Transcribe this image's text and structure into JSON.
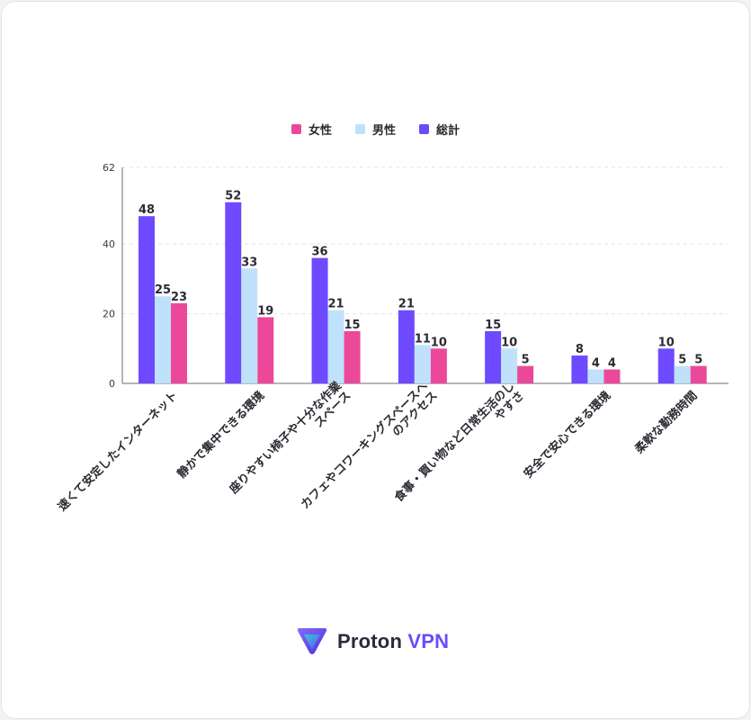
{
  "legend": [
    {
      "name": "女性",
      "color": "#ec4899"
    },
    {
      "name": "男性",
      "color": "#bfe1fb"
    },
    {
      "name": "総計",
      "color": "#6d4aff"
    }
  ],
  "chart_data": {
    "type": "bar",
    "categories": [
      "速くて安定したインターネット",
      "静かで集中できる環境",
      "座りやすい椅子や十分な作業スペース",
      "カフェやコワーキングスペースへのアクセス",
      "食事・買い物など日常生活のしやすさ",
      "安全で安心できる環境",
      "柔軟な勤務時間"
    ],
    "category_label_lines": [
      [
        "速くて安定したインターネット"
      ],
      [
        "静かで集中できる環境"
      ],
      [
        "座りやすい椅子や十分な作業",
        "スペース"
      ],
      [
        "カフェやコワーキングスペースへ",
        "のアクセス"
      ],
      [
        "食事・買い物など日常生活のし",
        "やすさ"
      ],
      [
        "安全で安心できる環境"
      ],
      [
        "柔軟な勤務時間"
      ]
    ],
    "series": [
      {
        "name": "総計",
        "color": "#6d4aff",
        "values": [
          48,
          52,
          36,
          21,
          15,
          8,
          10
        ]
      },
      {
        "name": "男性",
        "color": "#bfe1fb",
        "values": [
          25,
          33,
          21,
          11,
          10,
          4,
          5
        ]
      },
      {
        "name": "女性",
        "color": "#ec4899",
        "values": [
          23,
          19,
          15,
          10,
          5,
          4,
          5
        ]
      }
    ],
    "ylim": [
      0,
      62
    ],
    "yticks": [
      0,
      20,
      40,
      62
    ],
    "grid": true,
    "legend_position": "top-center"
  },
  "brand": {
    "name": "Proton",
    "product": "VPN"
  }
}
